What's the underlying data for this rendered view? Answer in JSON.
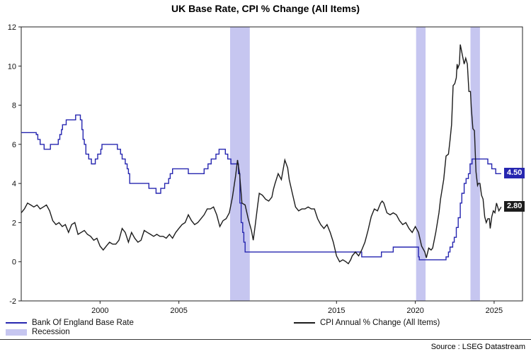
{
  "title": "UK Base Rate, CPI % Change (All Items)",
  "source": "Source : LSEG Datastream",
  "legend": [
    {
      "label": "Bank Of England Base Rate",
      "type": "line",
      "color": "#2626b0"
    },
    {
      "label": "Recession",
      "type": "band",
      "color": "#c6c6f0"
    },
    {
      "label": "CPI Annual % Change (All Items)",
      "type": "line",
      "color": "#1c1c1c"
    }
  ],
  "chart_data": {
    "type": "line",
    "title": "UK Base Rate, CPI % Change (All Items)",
    "xlabel": "",
    "ylabel": "",
    "xlim": [
      1995,
      2026.8
    ],
    "ylim": [
      -2,
      12
    ],
    "y_ticks": [
      -2,
      0,
      2,
      4,
      6,
      8,
      10,
      12
    ],
    "x_ticks": [
      2000,
      2005,
      2015,
      2020,
      2025
    ],
    "grid": false,
    "legend_position": "bottom",
    "band_color": "#c6c6f0",
    "recession_bands": [
      [
        2008.25,
        2009.5
      ],
      [
        2020.05,
        2020.65
      ],
      [
        2023.5,
        2024.1
      ]
    ],
    "series": [
      {
        "name": "Bank Of England Base Rate",
        "color": "#2626b0",
        "step": true,
        "end_label": "4.50",
        "points": [
          [
            1995.0,
            6.6
          ],
          [
            1995.95,
            6.5
          ],
          [
            1996.05,
            6.25
          ],
          [
            1996.2,
            6.0
          ],
          [
            1996.45,
            5.75
          ],
          [
            1996.85,
            6.0
          ],
          [
            1997.35,
            6.25
          ],
          [
            1997.45,
            6.5
          ],
          [
            1997.55,
            6.75
          ],
          [
            1997.62,
            7.0
          ],
          [
            1997.85,
            7.25
          ],
          [
            1998.45,
            7.5
          ],
          [
            1998.75,
            7.25
          ],
          [
            1998.85,
            6.75
          ],
          [
            1998.92,
            6.25
          ],
          [
            1999.0,
            6.0
          ],
          [
            1999.1,
            5.5
          ],
          [
            1999.28,
            5.25
          ],
          [
            1999.45,
            5.0
          ],
          [
            1999.7,
            5.25
          ],
          [
            1999.85,
            5.5
          ],
          [
            2000.05,
            5.75
          ],
          [
            2000.12,
            6.0
          ],
          [
            2001.1,
            5.75
          ],
          [
            2001.3,
            5.5
          ],
          [
            2001.4,
            5.25
          ],
          [
            2001.6,
            5.0
          ],
          [
            2001.72,
            4.75
          ],
          [
            2001.8,
            4.5
          ],
          [
            2001.88,
            4.0
          ],
          [
            2003.1,
            3.75
          ],
          [
            2003.55,
            3.5
          ],
          [
            2003.85,
            3.75
          ],
          [
            2004.1,
            4.0
          ],
          [
            2004.35,
            4.25
          ],
          [
            2004.45,
            4.5
          ],
          [
            2004.6,
            4.75
          ],
          [
            2005.6,
            4.5
          ],
          [
            2006.6,
            4.75
          ],
          [
            2006.85,
            5.0
          ],
          [
            2007.05,
            5.25
          ],
          [
            2007.35,
            5.5
          ],
          [
            2007.55,
            5.75
          ],
          [
            2007.95,
            5.5
          ],
          [
            2008.1,
            5.25
          ],
          [
            2008.3,
            5.0
          ],
          [
            2008.78,
            4.5
          ],
          [
            2008.87,
            3.0
          ],
          [
            2008.95,
            2.0
          ],
          [
            2009.05,
            1.5
          ],
          [
            2009.12,
            1.0
          ],
          [
            2009.2,
            0.5
          ],
          [
            2016.6,
            0.25
          ],
          [
            2017.85,
            0.5
          ],
          [
            2018.6,
            0.75
          ],
          [
            2020.2,
            0.25
          ],
          [
            2020.25,
            0.1
          ],
          [
            2021.95,
            0.25
          ],
          [
            2022.1,
            0.5
          ],
          [
            2022.2,
            0.75
          ],
          [
            2022.37,
            1.0
          ],
          [
            2022.47,
            1.25
          ],
          [
            2022.6,
            1.75
          ],
          [
            2022.72,
            2.25
          ],
          [
            2022.85,
            3.0
          ],
          [
            2022.95,
            3.5
          ],
          [
            2023.1,
            4.0
          ],
          [
            2023.22,
            4.25
          ],
          [
            2023.37,
            4.5
          ],
          [
            2023.47,
            5.0
          ],
          [
            2023.6,
            5.25
          ],
          [
            2024.6,
            5.0
          ],
          [
            2024.85,
            4.75
          ],
          [
            2025.1,
            4.5
          ],
          [
            2025.45,
            4.5
          ]
        ]
      },
      {
        "name": "CPI Annual % Change (All Items)",
        "color": "#1c1c1c",
        "step": false,
        "end_label": "2.80",
        "points": [
          [
            1995.0,
            2.5
          ],
          [
            1995.2,
            2.7
          ],
          [
            1995.4,
            3.0
          ],
          [
            1995.6,
            2.9
          ],
          [
            1995.8,
            2.8
          ],
          [
            1996.0,
            2.9
          ],
          [
            1996.2,
            2.7
          ],
          [
            1996.4,
            2.8
          ],
          [
            1996.6,
            2.9
          ],
          [
            1996.8,
            2.6
          ],
          [
            1997.0,
            2.1
          ],
          [
            1997.2,
            1.9
          ],
          [
            1997.4,
            2.0
          ],
          [
            1997.6,
            1.8
          ],
          [
            1997.8,
            1.9
          ],
          [
            1998.0,
            1.5
          ],
          [
            1998.2,
            1.9
          ],
          [
            1998.4,
            2.0
          ],
          [
            1998.6,
            1.4
          ],
          [
            1998.8,
            1.5
          ],
          [
            1999.0,
            1.6
          ],
          [
            1999.2,
            1.4
          ],
          [
            1999.4,
            1.3
          ],
          [
            1999.6,
            1.1
          ],
          [
            1999.8,
            1.2
          ],
          [
            2000.0,
            0.8
          ],
          [
            2000.2,
            0.6
          ],
          [
            2000.4,
            0.8
          ],
          [
            2000.6,
            1.0
          ],
          [
            2000.8,
            0.9
          ],
          [
            2001.0,
            0.9
          ],
          [
            2001.2,
            1.1
          ],
          [
            2001.4,
            1.7
          ],
          [
            2001.6,
            1.5
          ],
          [
            2001.8,
            1.0
          ],
          [
            2002.0,
            1.5
          ],
          [
            2002.2,
            1.2
          ],
          [
            2002.4,
            1.0
          ],
          [
            2002.6,
            1.1
          ],
          [
            2002.8,
            1.6
          ],
          [
            2003.0,
            1.5
          ],
          [
            2003.2,
            1.4
          ],
          [
            2003.4,
            1.3
          ],
          [
            2003.6,
            1.4
          ],
          [
            2003.8,
            1.3
          ],
          [
            2004.0,
            1.3
          ],
          [
            2004.2,
            1.2
          ],
          [
            2004.4,
            1.4
          ],
          [
            2004.6,
            1.2
          ],
          [
            2004.8,
            1.5
          ],
          [
            2005.0,
            1.7
          ],
          [
            2005.2,
            1.9
          ],
          [
            2005.4,
            2.0
          ],
          [
            2005.6,
            2.4
          ],
          [
            2005.8,
            2.1
          ],
          [
            2006.0,
            1.9
          ],
          [
            2006.2,
            2.0
          ],
          [
            2006.4,
            2.2
          ],
          [
            2006.6,
            2.4
          ],
          [
            2006.8,
            2.7
          ],
          [
            2007.0,
            2.7
          ],
          [
            2007.2,
            2.8
          ],
          [
            2007.4,
            2.4
          ],
          [
            2007.6,
            1.8
          ],
          [
            2007.8,
            2.1
          ],
          [
            2008.0,
            2.2
          ],
          [
            2008.2,
            2.5
          ],
          [
            2008.4,
            3.3
          ],
          [
            2008.6,
            4.4
          ],
          [
            2008.72,
            5.2
          ],
          [
            2008.85,
            4.5
          ],
          [
            2009.0,
            3.0
          ],
          [
            2009.2,
            2.9
          ],
          [
            2009.4,
            2.2
          ],
          [
            2009.6,
            1.6
          ],
          [
            2009.72,
            1.1
          ],
          [
            2009.85,
            1.9
          ],
          [
            2010.0,
            2.9
          ],
          [
            2010.1,
            3.5
          ],
          [
            2010.3,
            3.4
          ],
          [
            2010.5,
            3.2
          ],
          [
            2010.7,
            3.1
          ],
          [
            2010.9,
            3.3
          ],
          [
            2011.0,
            3.7
          ],
          [
            2011.1,
            4.0
          ],
          [
            2011.3,
            4.5
          ],
          [
            2011.5,
            4.2
          ],
          [
            2011.72,
            5.2
          ],
          [
            2011.9,
            4.8
          ],
          [
            2012.0,
            4.2
          ],
          [
            2012.2,
            3.5
          ],
          [
            2012.4,
            2.8
          ],
          [
            2012.6,
            2.6
          ],
          [
            2012.8,
            2.7
          ],
          [
            2013.0,
            2.7
          ],
          [
            2013.2,
            2.8
          ],
          [
            2013.4,
            2.7
          ],
          [
            2013.6,
            2.7
          ],
          [
            2013.8,
            2.2
          ],
          [
            2014.0,
            1.9
          ],
          [
            2014.2,
            1.7
          ],
          [
            2014.4,
            1.9
          ],
          [
            2014.6,
            1.5
          ],
          [
            2014.8,
            1.0
          ],
          [
            2015.0,
            0.3
          ],
          [
            2015.2,
            0.0
          ],
          [
            2015.4,
            0.1
          ],
          [
            2015.6,
            0.0
          ],
          [
            2015.75,
            -0.1
          ],
          [
            2015.9,
            0.1
          ],
          [
            2016.0,
            0.3
          ],
          [
            2016.2,
            0.5
          ],
          [
            2016.4,
            0.3
          ],
          [
            2016.6,
            0.6
          ],
          [
            2016.8,
            1.0
          ],
          [
            2017.0,
            1.6
          ],
          [
            2017.2,
            2.3
          ],
          [
            2017.4,
            2.7
          ],
          [
            2017.6,
            2.6
          ],
          [
            2017.8,
            3.0
          ],
          [
            2017.9,
            3.1
          ],
          [
            2018.0,
            3.0
          ],
          [
            2018.2,
            2.5
          ],
          [
            2018.4,
            2.4
          ],
          [
            2018.6,
            2.5
          ],
          [
            2018.8,
            2.4
          ],
          [
            2019.0,
            2.1
          ],
          [
            2019.2,
            1.9
          ],
          [
            2019.4,
            2.0
          ],
          [
            2019.6,
            1.7
          ],
          [
            2019.8,
            1.5
          ],
          [
            2020.0,
            1.8
          ],
          [
            2020.2,
            1.5
          ],
          [
            2020.4,
            0.8
          ],
          [
            2020.6,
            0.5
          ],
          [
            2020.7,
            0.2
          ],
          [
            2020.85,
            0.7
          ],
          [
            2021.0,
            0.6
          ],
          [
            2021.1,
            0.7
          ],
          [
            2021.3,
            1.5
          ],
          [
            2021.5,
            2.5
          ],
          [
            2021.6,
            3.2
          ],
          [
            2021.8,
            4.2
          ],
          [
            2021.95,
            5.4
          ],
          [
            2022.1,
            5.5
          ],
          [
            2022.2,
            6.2
          ],
          [
            2022.3,
            7.0
          ],
          [
            2022.4,
            9.0
          ],
          [
            2022.5,
            9.1
          ],
          [
            2022.6,
            9.4
          ],
          [
            2022.65,
            10.1
          ],
          [
            2022.7,
            9.9
          ],
          [
            2022.8,
            10.1
          ],
          [
            2022.85,
            11.1
          ],
          [
            2022.95,
            10.7
          ],
          [
            2023.0,
            10.5
          ],
          [
            2023.1,
            10.1
          ],
          [
            2023.2,
            10.4
          ],
          [
            2023.3,
            10.1
          ],
          [
            2023.4,
            8.7
          ],
          [
            2023.5,
            8.7
          ],
          [
            2023.55,
            7.9
          ],
          [
            2023.65,
            6.8
          ],
          [
            2023.75,
            6.7
          ],
          [
            2023.85,
            4.6
          ],
          [
            2023.95,
            3.9
          ],
          [
            2024.0,
            4.0
          ],
          [
            2024.1,
            4.0
          ],
          [
            2024.2,
            3.4
          ],
          [
            2024.3,
            3.2
          ],
          [
            2024.4,
            2.3
          ],
          [
            2024.5,
            2.0
          ],
          [
            2024.6,
            2.2
          ],
          [
            2024.7,
            2.2
          ],
          [
            2024.75,
            1.7
          ],
          [
            2024.85,
            2.3
          ],
          [
            2024.95,
            2.6
          ],
          [
            2025.05,
            2.5
          ],
          [
            2025.15,
            3.0
          ],
          [
            2025.3,
            2.6
          ],
          [
            2025.45,
            2.8
          ]
        ]
      }
    ]
  }
}
